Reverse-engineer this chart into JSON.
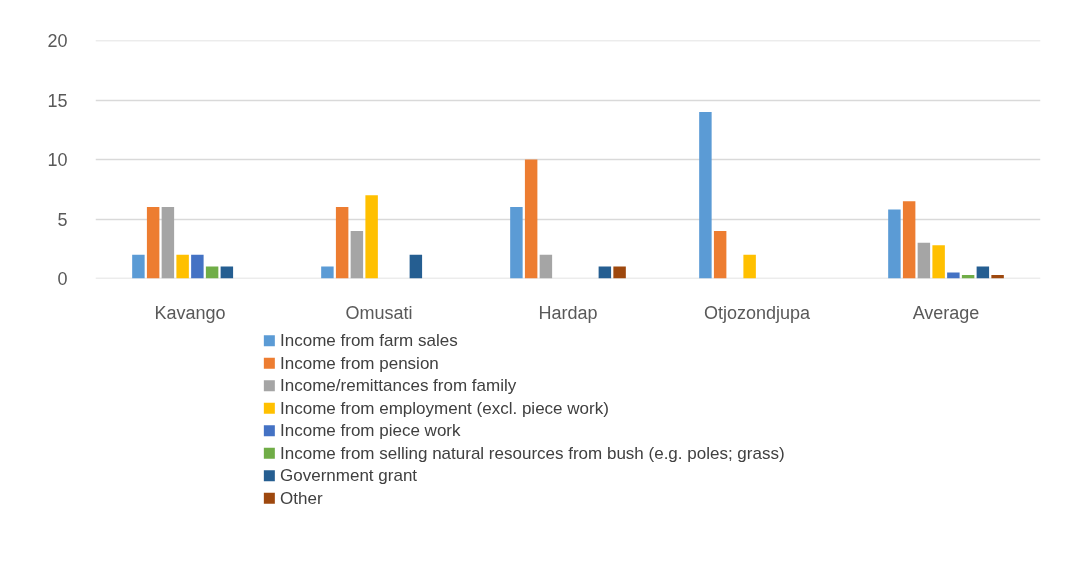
{
  "chart_data": {
    "type": "bar",
    "categories": [
      "Kavango",
      "Omusati",
      "Hardap",
      "Otjozondjupa",
      "Average"
    ],
    "series": [
      {
        "name": "Income from farm sales",
        "color": "#5b9bd5",
        "values": [
          2,
          1,
          6,
          14,
          5.8
        ]
      },
      {
        "name": "Income from pension",
        "color": "#ed7d31",
        "values": [
          6,
          6,
          10,
          4,
          6.5
        ]
      },
      {
        "name": "Income/remittances from family",
        "color": "#a5a5a5",
        "values": [
          6,
          4,
          2,
          0,
          3
        ]
      },
      {
        "name": "Income from employment (excl. piece work)",
        "color": "#ffc000",
        "values": [
          2,
          7,
          0,
          2,
          2.8
        ]
      },
      {
        "name": "Income from piece work",
        "color": "#4472c4",
        "values": [
          2,
          0,
          0,
          0,
          0.5
        ]
      },
      {
        "name": "Income from selling natural resources from bush (e.g. poles; grass)",
        "color": "#70ad47",
        "values": [
          1,
          0,
          0,
          0,
          0.3
        ]
      },
      {
        "name": "Government grant",
        "color": "#255e91",
        "values": [
          1,
          2,
          1,
          0,
          1
        ]
      },
      {
        "name": "Other",
        "color": "#9e480e",
        "values": [
          0,
          0,
          1,
          0,
          0.3
        ]
      }
    ],
    "ylim": [
      0,
      20
    ],
    "yticks": [
      0,
      5,
      10,
      15,
      20
    ],
    "grid": "y",
    "legend": "bottom"
  }
}
